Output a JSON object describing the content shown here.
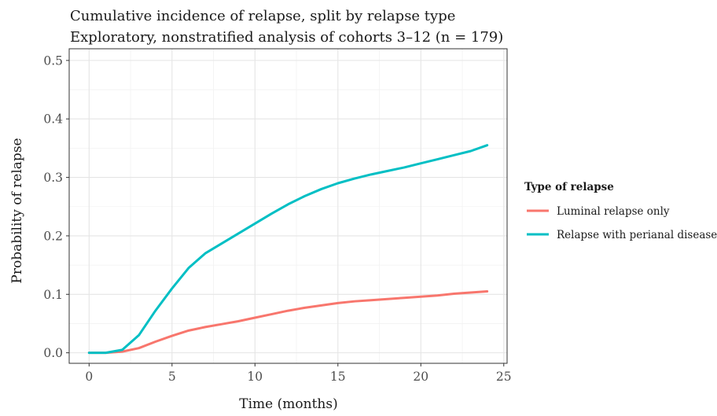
{
  "chart_data": {
    "type": "line",
    "title": "Cumulative incidence of relapse, split by relapse type",
    "subtitle": "Exploratory, nonstratified analysis of cohorts 3–12 (n = 179)",
    "xlabel": "Time (months)",
    "ylabel": "Probability of relapse",
    "xlim": [
      -1.2,
      25.2
    ],
    "ylim": [
      -0.018,
      0.52
    ],
    "x_ticks": [
      0,
      5,
      10,
      15,
      20,
      25
    ],
    "x_tick_labels": [
      "0",
      "5",
      "10",
      "15",
      "20",
      "25"
    ],
    "y_ticks": [
      0.0,
      0.1,
      0.2,
      0.3,
      0.4,
      0.5
    ],
    "y_tick_labels": [
      "0.0",
      "0.1",
      "0.2",
      "0.3",
      "0.4",
      "0.5"
    ],
    "grid": true,
    "legend": {
      "title": "Type of relapse",
      "placement": "right"
    },
    "x": [
      0,
      1,
      2,
      3,
      4,
      5,
      6,
      7,
      8,
      9,
      10,
      11,
      12,
      13,
      14,
      15,
      16,
      17,
      18,
      19,
      20,
      21,
      22,
      23,
      24
    ],
    "series": [
      {
        "name": "Luminal relapse only",
        "color": "#F8766D",
        "values": [
          0.0,
          0.0,
          0.002,
          0.008,
          0.019,
          0.029,
          0.038,
          0.044,
          0.049,
          0.054,
          0.06,
          0.066,
          0.072,
          0.077,
          0.081,
          0.085,
          0.088,
          0.09,
          0.092,
          0.094,
          0.096,
          0.098,
          0.101,
          0.103,
          0.105
        ]
      },
      {
        "name": "Relapse with perianal disease",
        "color": "#00BFC4",
        "values": [
          0.0,
          0.0,
          0.005,
          0.03,
          0.072,
          0.11,
          0.145,
          0.17,
          0.187,
          0.204,
          0.221,
          0.238,
          0.254,
          0.268,
          0.28,
          0.29,
          0.298,
          0.305,
          0.311,
          0.317,
          0.324,
          0.331,
          0.338,
          0.345,
          0.355
        ]
      }
    ]
  }
}
